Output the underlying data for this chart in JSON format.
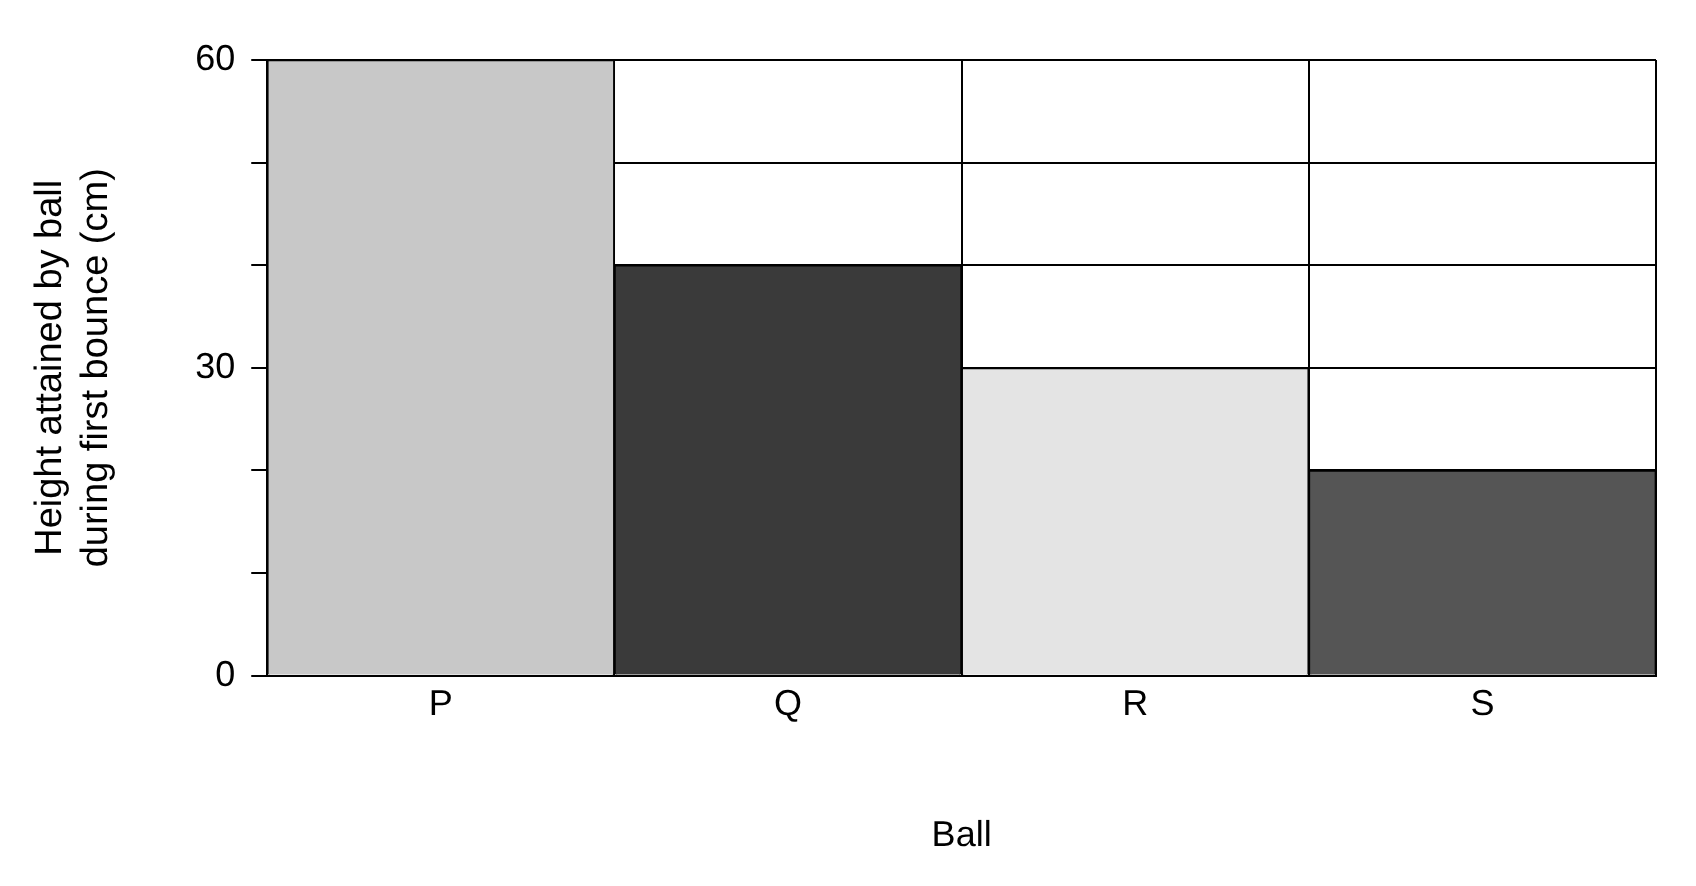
{
  "chart_data": {
    "type": "bar",
    "xlabel": "Ball",
    "ylabel": "Height attained by ball during first bounce (cm)",
    "categories": [
      "P",
      "Q",
      "R",
      "S"
    ],
    "values": [
      60,
      40,
      30,
      20
    ],
    "colors": [
      "#c8c8c8",
      "#3a3a3a",
      "#e4e4e4",
      "#555555"
    ],
    "ylim": [
      0,
      60
    ],
    "yticks": [
      0,
      {
        "value": 10,
        "label": null
      },
      {
        "value": 20,
        "label": null
      },
      30,
      {
        "value": 40,
        "label": null
      },
      {
        "value": 50,
        "label": null
      },
      60
    ],
    "grid": true,
    "legend": false
  }
}
